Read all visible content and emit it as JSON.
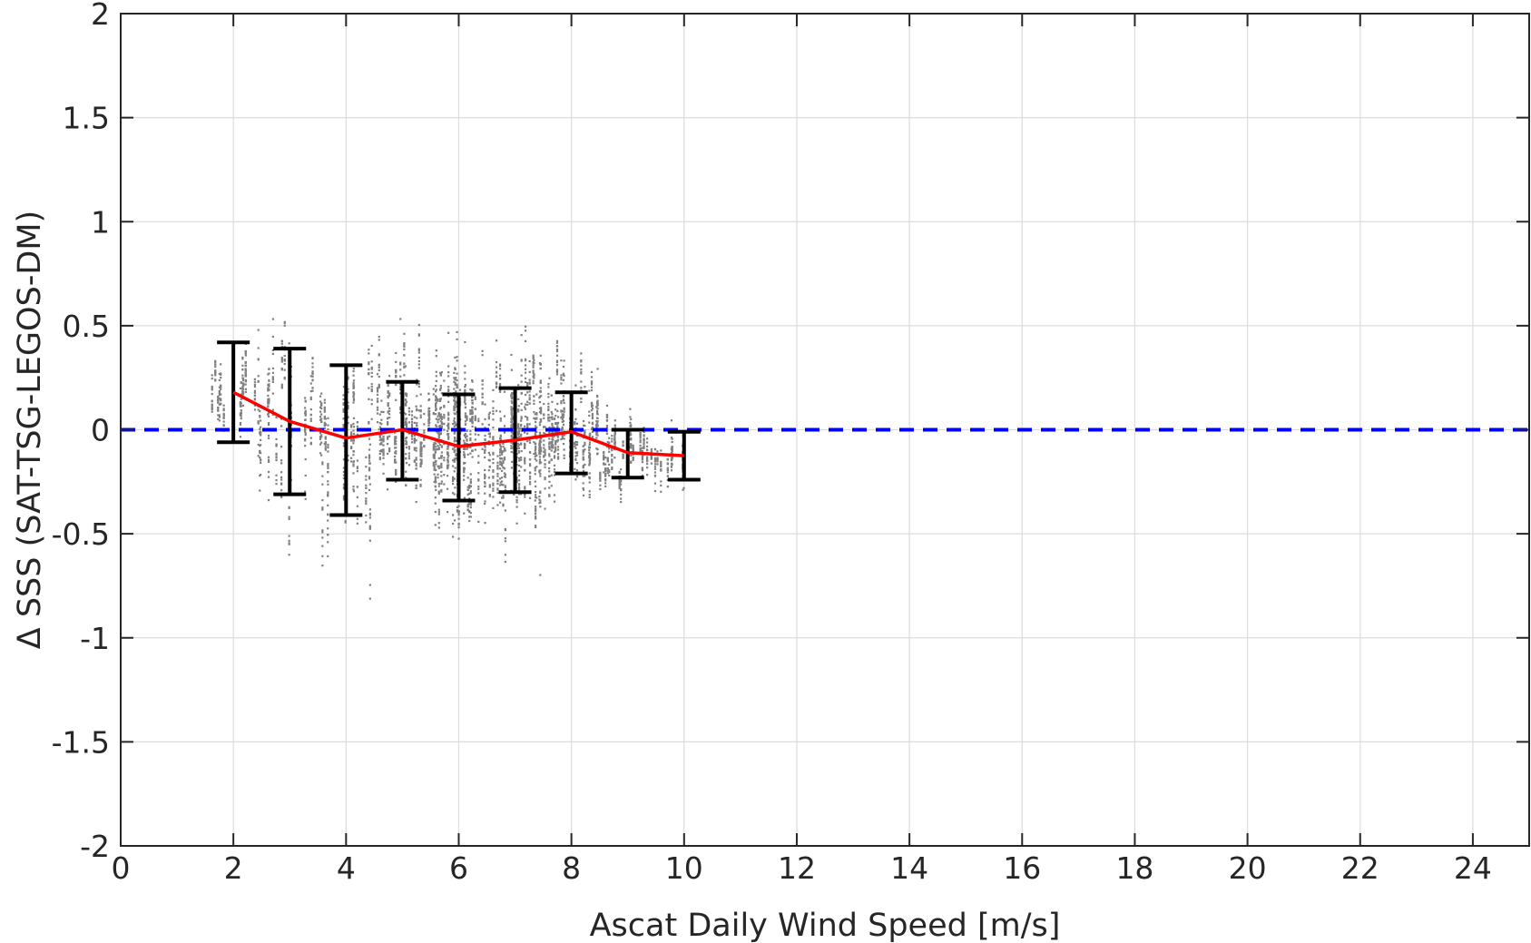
{
  "chart_data": {
    "type": "scatter",
    "xlabel": "Ascat Daily Wind Speed [m/s]",
    "ylabel": "Δ SSS (SAT-TSG-LEGOS-DM)",
    "xlim": [
      0,
      25
    ],
    "ylim": [
      -2,
      2
    ],
    "xticks": [
      0,
      2,
      4,
      6,
      8,
      10,
      12,
      14,
      16,
      18,
      20,
      22,
      24
    ],
    "yticks": [
      -2,
      -1.5,
      -1,
      -0.5,
      0,
      0.5,
      1,
      1.5,
      2
    ],
    "grid": true,
    "reference_line": {
      "y": 0,
      "style": "dashed",
      "color": "#0000ff"
    },
    "scatter_color": "#808080",
    "scatter_clusters": [
      {
        "x_range": [
          1.6,
          2.4
        ],
        "y_mean": 0.18,
        "y_sd": 0.09,
        "n": 180
      },
      {
        "x_range": [
          2.4,
          3.5
        ],
        "y_mean": 0.05,
        "y_sd": 0.2,
        "n": 260
      },
      {
        "x_range": [
          3.5,
          4.5
        ],
        "y_mean": -0.04,
        "y_sd": 0.22,
        "n": 300
      },
      {
        "x_range": [
          4.5,
          5.5
        ],
        "y_mean": 0.0,
        "y_sd": 0.16,
        "n": 420
      },
      {
        "x_range": [
          5.5,
          6.5
        ],
        "y_mean": -0.08,
        "y_sd": 0.2,
        "n": 650
      },
      {
        "x_range": [
          6.5,
          7.5
        ],
        "y_mean": -0.05,
        "y_sd": 0.2,
        "n": 620
      },
      {
        "x_range": [
          7.5,
          8.5
        ],
        "y_mean": -0.01,
        "y_sd": 0.15,
        "n": 460
      },
      {
        "x_range": [
          8.5,
          9.5
        ],
        "y_mean": -0.11,
        "y_sd": 0.09,
        "n": 300
      },
      {
        "x_range": [
          9.5,
          10.0
        ],
        "y_mean": -0.12,
        "y_sd": 0.08,
        "n": 120
      }
    ],
    "series": [
      {
        "type": "line",
        "color": "#ff0000",
        "x": [
          2,
          3,
          4,
          5,
          6,
          7,
          8,
          9,
          10
        ],
        "y": [
          0.18,
          0.04,
          -0.04,
          0.0,
          -0.08,
          -0.05,
          -0.01,
          -0.11,
          -0.125
        ]
      },
      {
        "type": "errorbar",
        "color": "#000000",
        "x": [
          2,
          3,
          4,
          5,
          6,
          7,
          8,
          9,
          10
        ],
        "low": [
          -0.06,
          -0.31,
          -0.41,
          -0.24,
          -0.34,
          -0.3,
          -0.21,
          -0.23,
          -0.24
        ],
        "high": [
          0.42,
          0.39,
          0.31,
          0.23,
          0.17,
          0.2,
          0.18,
          0.0,
          -0.01
        ]
      }
    ]
  }
}
